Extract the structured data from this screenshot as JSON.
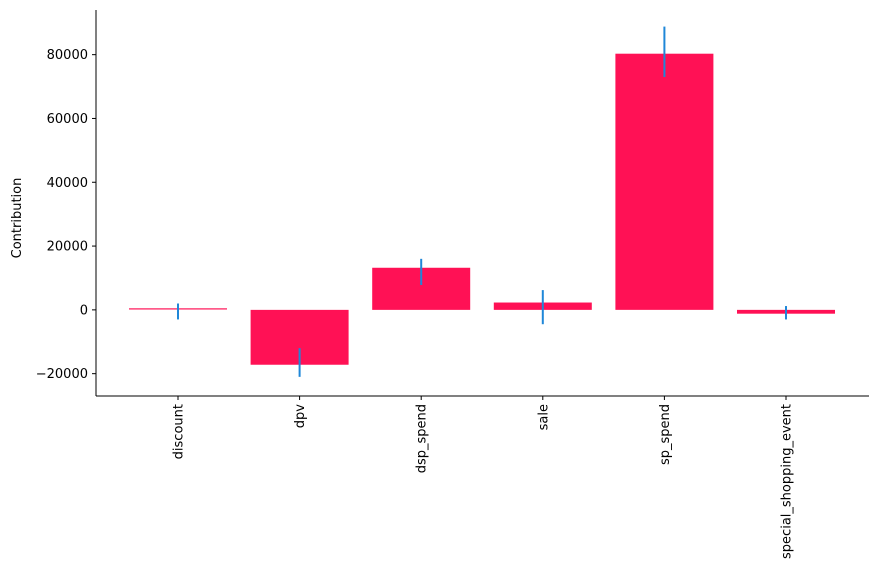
{
  "chart_data": {
    "type": "bar",
    "title": "",
    "xlabel": "",
    "ylabel": "Contribution",
    "categories": [
      "discount",
      "dpv",
      "dsp_spend",
      "sale",
      "sp_spend",
      "special_shopping_event"
    ],
    "values": [
      300,
      -17200,
      13200,
      2300,
      80300,
      -1200
    ],
    "error_low": [
      -3000,
      -21000,
      7800,
      -4500,
      73000,
      -3000
    ],
    "error_high": [
      2000,
      -12000,
      16000,
      6200,
      88800,
      1200
    ],
    "ylim": [
      -27000,
      94000
    ],
    "yticks": [
      -20000,
      0,
      20000,
      40000,
      60000,
      80000
    ],
    "ytick_labels": [
      "−20000",
      "0",
      "20000",
      "40000",
      "60000",
      "80000"
    ],
    "grid": false,
    "colors": {
      "bar": "#ff1155",
      "error_bar": "#1f87d8",
      "axis": "#000000"
    }
  }
}
